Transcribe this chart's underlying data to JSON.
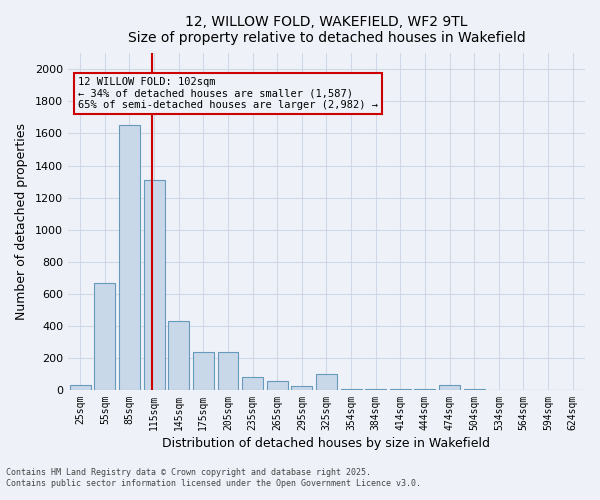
{
  "title": "12, WILLOW FOLD, WAKEFIELD, WF2 9TL",
  "subtitle": "Size of property relative to detached houses in Wakefield",
  "xlabel": "Distribution of detached houses by size in Wakefield",
  "ylabel": "Number of detached properties",
  "categories": [
    "25sqm",
    "55sqm",
    "85sqm",
    "115sqm",
    "145sqm",
    "175sqm",
    "205sqm",
    "235sqm",
    "265sqm",
    "295sqm",
    "325sqm",
    "354sqm",
    "384sqm",
    "414sqm",
    "444sqm",
    "474sqm",
    "504sqm",
    "534sqm",
    "564sqm",
    "594sqm",
    "624sqm"
  ],
  "values": [
    30,
    670,
    1650,
    1310,
    430,
    235,
    235,
    80,
    55,
    25,
    100,
    5,
    5,
    5,
    5,
    30,
    5,
    0,
    0,
    0,
    0
  ],
  "bar_color": "#c8d8e8",
  "bar_edge_color": "#6699bb",
  "grid_color": "#d0d8e8",
  "vline_x": 3,
  "vline_color": "#cc0000",
  "annotation_text": "12 WILLOW FOLD: 102sqm\n← 34% of detached houses are smaller (1,587)\n65% of semi-detached houses are larger (2,982) →",
  "annotation_box_color": "#cc0000",
  "ylim": [
    0,
    2100
  ],
  "yticks": [
    0,
    200,
    400,
    600,
    800,
    1000,
    1200,
    1400,
    1600,
    1800,
    2000
  ],
  "footer_line1": "Contains HM Land Registry data © Crown copyright and database right 2025.",
  "footer_line2": "Contains public sector information licensed under the Open Government Licence v3.0.",
  "bg_color": "#eef2f8",
  "plot_bg_color": "#eef2f8"
}
